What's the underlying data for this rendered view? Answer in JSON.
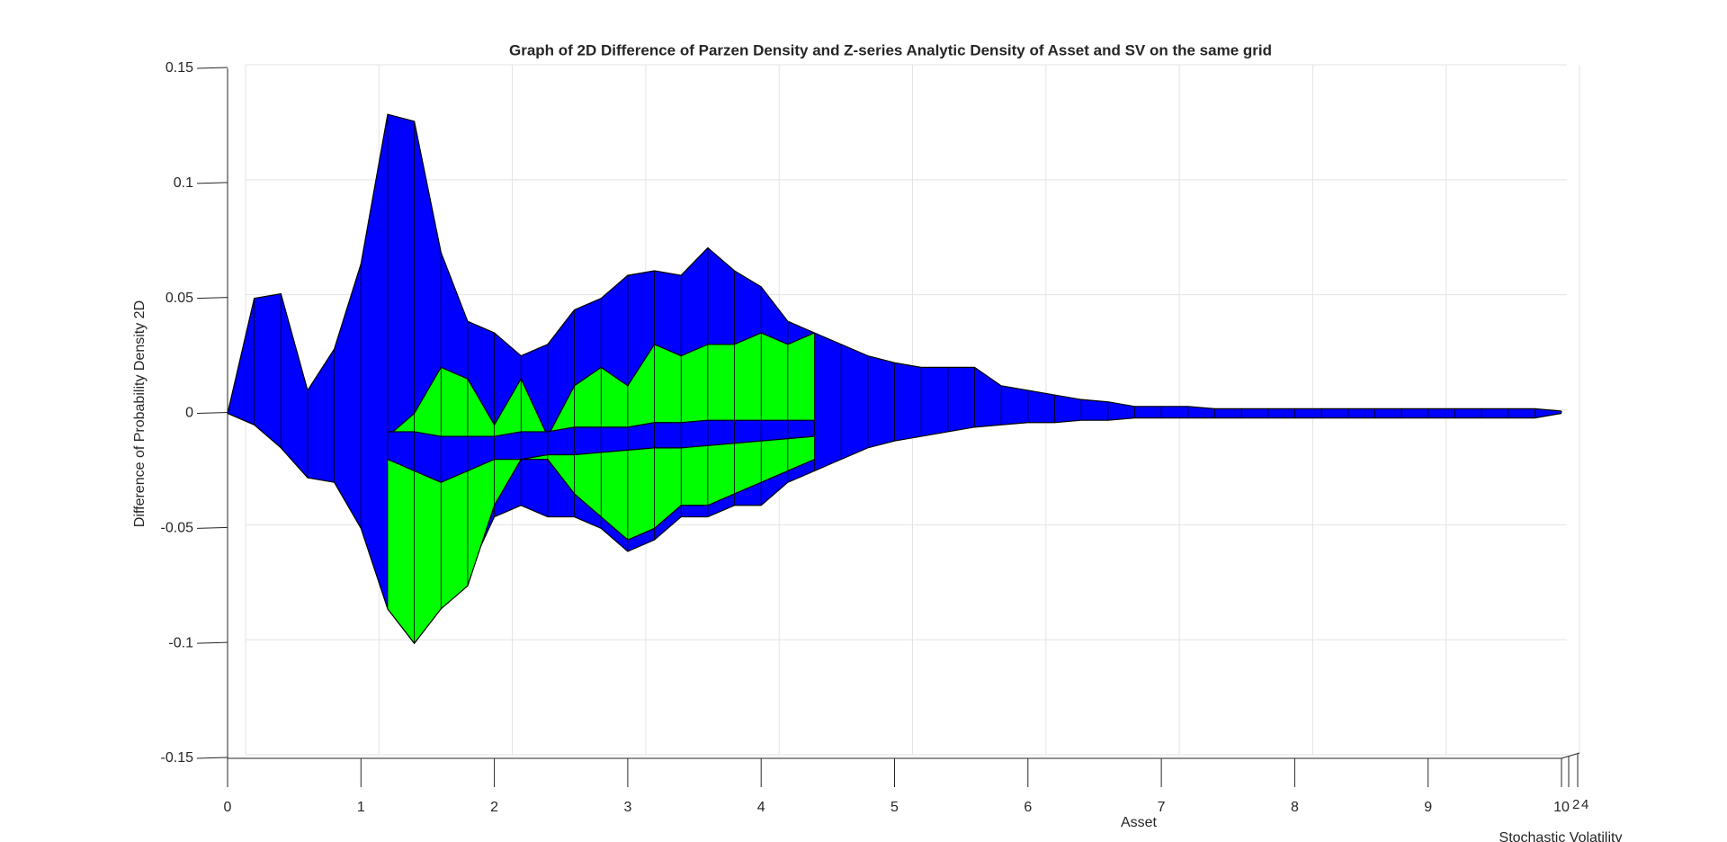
{
  "chart_data": {
    "type": "surface3d",
    "title": "Graph of 2D Difference of Parzen Density and Z-series Analytic Density of Asset and SV on the same grid",
    "xlabel": "Asset",
    "ylabel": "Difference of Probability Density 2D",
    "zlabel": "Stochastic Volatility",
    "xlim": [
      0,
      10
    ],
    "xticks": [
      0,
      1,
      2,
      3,
      4,
      5,
      6,
      7,
      8,
      9,
      10
    ],
    "ylim": [
      -0.15,
      0.15
    ],
    "yticks": [
      -0.15,
      -0.1,
      -0.05,
      0,
      0.05,
      0.1,
      0.15
    ],
    "zticks": [
      2,
      4
    ],
    "grid": true,
    "x": [
      0,
      0.2,
      0.4,
      0.6,
      0.8,
      1,
      1.2,
      1.4,
      1.6,
      1.8,
      2,
      2.2,
      2.4,
      2.6,
      2.8,
      3,
      3.2,
      3.4,
      3.6,
      3.8,
      4,
      4.2,
      4.4,
      4.6,
      4.8,
      5,
      5.2,
      5.4,
      5.6,
      5.8,
      6,
      6.2,
      6.4,
      6.6,
      6.8,
      7,
      7.2,
      7.4,
      7.6,
      7.8,
      8,
      8.2,
      8.4,
      8.6,
      8.8,
      9,
      9.2,
      9.4,
      9.6,
      9.8,
      10
    ],
    "series": [
      {
        "color": "#0000ff",
        "values": [
          0,
          0.05,
          0.052,
          0.01,
          0.028,
          0.065,
          0.13,
          0.127,
          0.07,
          0.04,
          0.035,
          0.025,
          0.03,
          0.045,
          0.05,
          0.06,
          0.062,
          0.06,
          0.072,
          0.062,
          0.055,
          0.04,
          0.035,
          0.03,
          0.025,
          0.022,
          0.02,
          0.02,
          0.02,
          0.012,
          0.01,
          0.008,
          0.006,
          0.005,
          0.003,
          0.003,
          0.003,
          0.002,
          0.002,
          0.002,
          0.002,
          0.002,
          0.002,
          0.002,
          0.002,
          0.002,
          0.002,
          0.002,
          0.002,
          0.002,
          0.001
        ],
        "lower": [
          0,
          -0.005,
          -0.015,
          -0.028,
          -0.03,
          -0.05,
          -0.085,
          -0.1,
          -0.085,
          -0.07,
          -0.045,
          -0.04,
          -0.045,
          -0.045,
          -0.05,
          -0.06,
          -0.055,
          -0.045,
          -0.045,
          -0.04,
          -0.04,
          -0.03,
          -0.025,
          -0.02,
          -0.015,
          -0.012,
          -0.01,
          -0.008,
          -0.006,
          -0.005,
          -0.004,
          -0.004,
          -0.003,
          -0.003,
          -0.002,
          -0.002,
          -0.002,
          -0.002,
          -0.002,
          -0.002,
          -0.002,
          -0.002,
          -0.002,
          -0.002,
          -0.002,
          -0.002,
          -0.002,
          -0.002,
          -0.002,
          -0.002,
          0
        ]
      },
      {
        "color": "#00ff00",
        "values": [
          null,
          null,
          null,
          null,
          null,
          null,
          -0.01,
          0,
          0.02,
          0.015,
          -0.005,
          0.015,
          -0.01,
          0.012,
          0.02,
          0.012,
          0.03,
          0.025,
          0.03,
          0.03,
          0.035,
          0.03,
          0.035,
          null,
          null,
          null,
          null,
          null,
          null,
          null,
          null,
          null,
          null,
          null,
          null,
          null,
          null,
          null,
          null,
          null,
          null,
          null,
          null,
          null,
          null,
          null,
          null,
          null,
          null,
          null,
          null
        ],
        "lower": [
          null,
          null,
          null,
          null,
          null,
          null,
          -0.085,
          -0.1,
          -0.085,
          -0.075,
          -0.04,
          -0.02,
          -0.02,
          -0.035,
          -0.045,
          -0.055,
          -0.05,
          -0.04,
          -0.04,
          -0.035,
          -0.03,
          -0.025,
          -0.02,
          null,
          null,
          null,
          null,
          null,
          null,
          null,
          null,
          null,
          null,
          null,
          null,
          null,
          null,
          null,
          null,
          null,
          null,
          null,
          null,
          null,
          null,
          null,
          null,
          null,
          null,
          null,
          null
        ]
      },
      {
        "color": "#0000ff",
        "values": [
          null,
          null,
          null,
          null,
          null,
          null,
          -0.008,
          -0.008,
          -0.01,
          -0.01,
          -0.01,
          -0.008,
          -0.008,
          -0.006,
          -0.006,
          -0.006,
          -0.004,
          -0.004,
          -0.003,
          -0.003,
          -0.003,
          -0.003,
          -0.003,
          null,
          null,
          null,
          null,
          null,
          null,
          null,
          null,
          null,
          null,
          null,
          null,
          null,
          null,
          null,
          null,
          null,
          null,
          null,
          null,
          null,
          null,
          null,
          null,
          null,
          null,
          null,
          null
        ],
        "lower": [
          null,
          null,
          null,
          null,
          null,
          null,
          -0.02,
          -0.025,
          -0.03,
          -0.025,
          -0.02,
          -0.02,
          -0.018,
          -0.018,
          -0.017,
          -0.016,
          -0.015,
          -0.015,
          -0.014,
          -0.013,
          -0.012,
          -0.011,
          -0.01,
          null,
          null,
          null,
          null,
          null,
          null,
          null,
          null,
          null,
          null,
          null,
          null,
          null,
          null,
          null,
          null,
          null,
          null,
          null,
          null,
          null,
          null,
          null,
          null,
          null,
          null,
          null,
          null
        ]
      }
    ]
  }
}
